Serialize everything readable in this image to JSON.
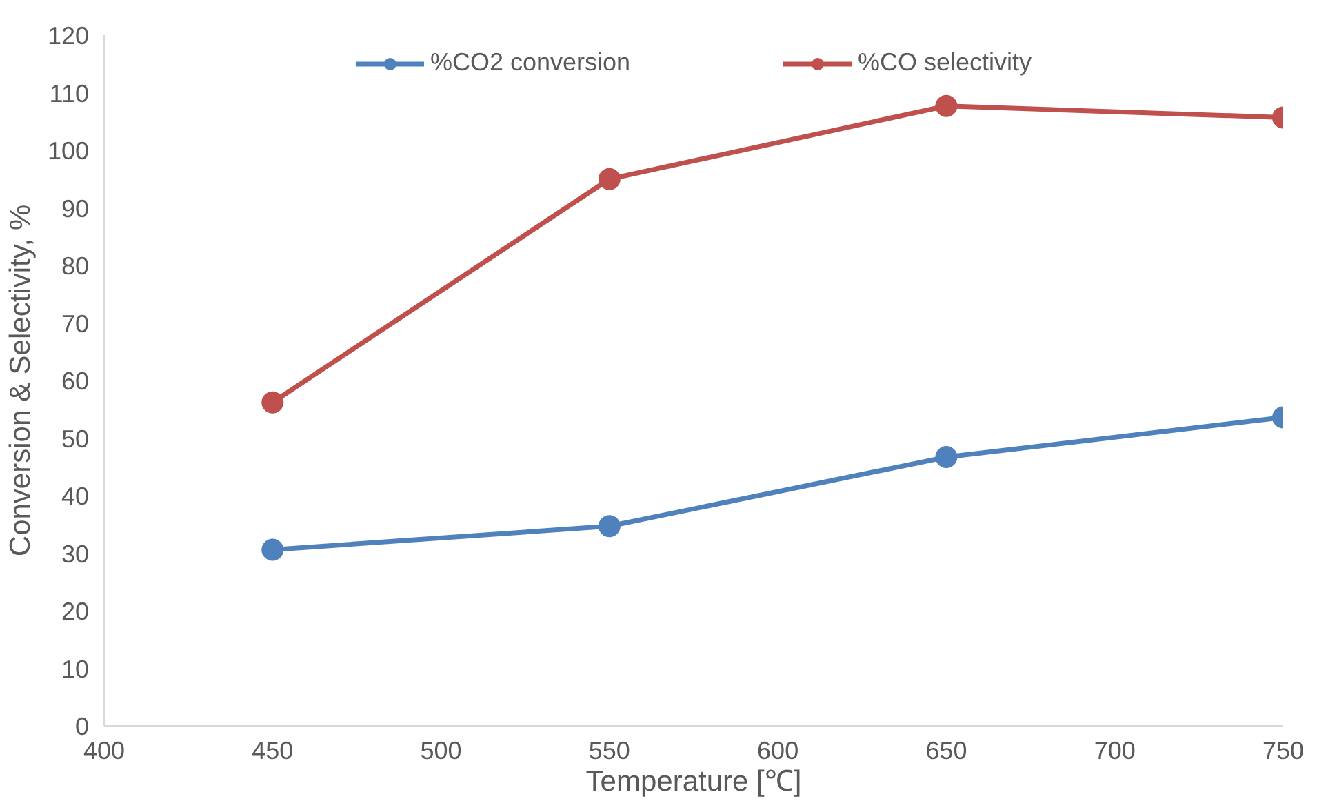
{
  "chart_data": {
    "type": "line",
    "xlabel": "Temperature [℃]",
    "ylabel": "Conversion & Selectivity, %",
    "x": [
      450,
      550,
      650,
      750
    ],
    "series": [
      {
        "name": "%CO2 conversion",
        "color": "#4f81bd",
        "values": [
          30.6,
          34.7,
          46.7,
          53.6
        ]
      },
      {
        "name": "%CO selectivity",
        "color": "#c0504d",
        "values": [
          56.2,
          95,
          107.7,
          105.7
        ]
      }
    ],
    "xlim": [
      400,
      750
    ],
    "xticks": [
      400,
      450,
      500,
      550,
      600,
      650,
      700,
      750
    ],
    "ylim": [
      0,
      120
    ],
    "yticks": [
      0,
      10,
      20,
      30,
      40,
      50,
      60,
      70,
      80,
      90,
      100,
      110,
      120
    ],
    "grid": false,
    "legend": "top",
    "marker": "circle",
    "line_style": "solid"
  }
}
